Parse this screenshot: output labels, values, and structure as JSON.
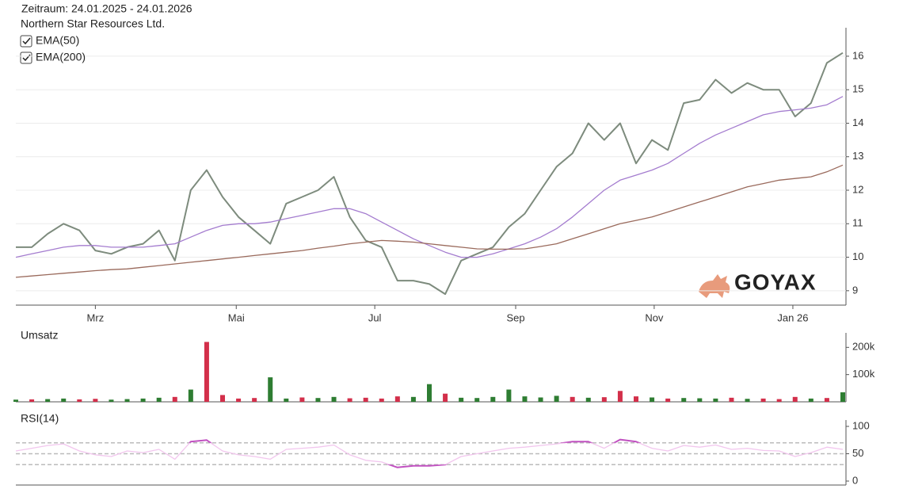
{
  "chart_data": [
    {
      "type": "line",
      "title": "Zeitraum: 24.01.2025 - 24.01.2026",
      "watermark": "GOYAX",
      "series": [
        {
          "name": "Northern Star Resources Ltd.",
          "color": "#7d8b7d",
          "values": [
            10.3,
            10.3,
            10.7,
            11.0,
            10.8,
            10.2,
            10.1,
            10.3,
            10.4,
            10.8,
            9.9,
            12.0,
            12.6,
            11.8,
            11.2,
            10.8,
            10.4,
            11.6,
            11.8,
            12.0,
            12.4,
            11.2,
            10.5,
            10.3,
            9.3,
            9.3,
            9.2,
            8.9,
            9.9,
            10.1,
            10.3,
            10.9,
            11.3,
            12.0,
            12.7,
            13.1,
            14.0,
            13.5,
            14.0,
            12.8,
            13.5,
            13.2,
            14.6,
            14.7,
            15.3,
            14.9,
            15.2,
            15.0,
            15.0,
            14.2,
            14.6,
            15.8,
            16.1
          ]
        },
        {
          "name": "EMA(50)",
          "color": "#a47ccf",
          "values": [
            10.0,
            10.1,
            10.2,
            10.3,
            10.35,
            10.35,
            10.3,
            10.3,
            10.3,
            10.35,
            10.4,
            10.6,
            10.8,
            10.95,
            11.0,
            11.0,
            11.05,
            11.15,
            11.25,
            11.35,
            11.45,
            11.45,
            11.3,
            11.05,
            10.8,
            10.55,
            10.35,
            10.15,
            10.0,
            10.0,
            10.1,
            10.25,
            10.4,
            10.6,
            10.85,
            11.2,
            11.6,
            12.0,
            12.3,
            12.45,
            12.6,
            12.8,
            13.1,
            13.4,
            13.65,
            13.85,
            14.05,
            14.25,
            14.35,
            14.4,
            14.45,
            14.55,
            14.8
          ]
        },
        {
          "name": "EMA(200)",
          "color": "#9a6a5c",
          "values": [
            9.4,
            9.44,
            9.48,
            9.52,
            9.56,
            9.6,
            9.63,
            9.65,
            9.7,
            9.75,
            9.8,
            9.85,
            9.9,
            9.95,
            10.0,
            10.05,
            10.1,
            10.15,
            10.2,
            10.27,
            10.33,
            10.4,
            10.45,
            10.5,
            10.48,
            10.45,
            10.4,
            10.35,
            10.3,
            10.25,
            10.24,
            10.24,
            10.25,
            10.32,
            10.4,
            10.55,
            10.7,
            10.85,
            11.0,
            11.1,
            11.2,
            11.35,
            11.5,
            11.65,
            11.8,
            11.95,
            12.1,
            12.2,
            12.3,
            12.35,
            12.4,
            12.55,
            12.75
          ]
        }
      ],
      "ylim": [
        8.57,
        16.85
      ],
      "yticks": [
        9,
        10,
        11,
        12,
        13,
        14,
        15,
        16
      ],
      "grid": true,
      "xlim": [
        0,
        52
      ],
      "xticks": [
        {
          "value": 5.0,
          "label": "Mrz"
        },
        {
          "value": 13.86,
          "label": "Mai"
        },
        {
          "value": 22.57,
          "label": "Jul"
        },
        {
          "value": 31.43,
          "label": "Sep"
        },
        {
          "value": 40.14,
          "label": "Nov"
        },
        {
          "value": 48.86,
          "label": "Jan 26"
        }
      ]
    },
    {
      "type": "bar",
      "title": "Umsatz",
      "values": [
        8000,
        9000,
        10000,
        12000,
        9000,
        11000,
        8000,
        10000,
        12000,
        15000,
        18000,
        45000,
        220000,
        25000,
        12000,
        14000,
        90000,
        12000,
        16000,
        14000,
        18000,
        13000,
        15000,
        12000,
        20000,
        18000,
        65000,
        30000,
        15000,
        14000,
        18000,
        45000,
        20000,
        16000,
        22000,
        18000,
        15000,
        17000,
        40000,
        20000,
        16000,
        12000,
        14000,
        13000,
        12000,
        15000,
        11000,
        12000,
        10000,
        18000,
        12000,
        14000,
        35000
      ],
      "colors": [
        "#2e7d32",
        "#d32f4a",
        "#2e7d32",
        "#2e7d32",
        "#d32f4a",
        "#d32f4a",
        "#2e7d32",
        "#2e7d32",
        "#2e7d32",
        "#2e7d32",
        "#d32f4a",
        "#2e7d32",
        "#d32f4a",
        "#d32f4a",
        "#d32f4a",
        "#d32f4a",
        "#2e7d32",
        "#2e7d32",
        "#d32f4a",
        "#2e7d32",
        "#2e7d32",
        "#d32f4a",
        "#d32f4a",
        "#d32f4a",
        "#d32f4a",
        "#2e7d32",
        "#2e7d32",
        "#d32f4a",
        "#2e7d32",
        "#2e7d32",
        "#2e7d32",
        "#2e7d32",
        "#2e7d32",
        "#2e7d32",
        "#2e7d32",
        "#d32f4a",
        "#2e7d32",
        "#d32f4a",
        "#d32f4a",
        "#d32f4a",
        "#2e7d32",
        "#d32f4a",
        "#2e7d32",
        "#2e7d32",
        "#2e7d32",
        "#d32f4a",
        "#2e7d32",
        "#d32f4a",
        "#d32f4a",
        "#d32f4a",
        "#2e7d32",
        "#d32f4a",
        "#2e7d32"
      ],
      "ylim": [
        0,
        230000
      ],
      "yticks": [
        {
          "value": 100000,
          "label": "100k"
        },
        {
          "value": 200000,
          "label": "200k"
        }
      ]
    },
    {
      "type": "line",
      "title": "RSI(14)",
      "color": "#f2c6ee",
      "highlight_color": "#c050c0",
      "values": [
        55,
        60,
        65,
        68,
        55,
        48,
        45,
        55,
        52,
        58,
        40,
        72,
        75,
        55,
        48,
        45,
        40,
        58,
        60,
        62,
        66,
        48,
        38,
        35,
        25,
        28,
        28,
        30,
        45,
        50,
        55,
        60,
        62,
        65,
        68,
        72,
        72,
        60,
        76,
        72,
        60,
        55,
        65,
        62,
        66,
        58,
        60,
        56,
        55,
        45,
        52,
        62,
        58
      ],
      "ylim": [
        0,
        100
      ],
      "yticks": [
        0,
        50,
        100
      ],
      "reference_lines": [
        30,
        50,
        70
      ]
    }
  ]
}
